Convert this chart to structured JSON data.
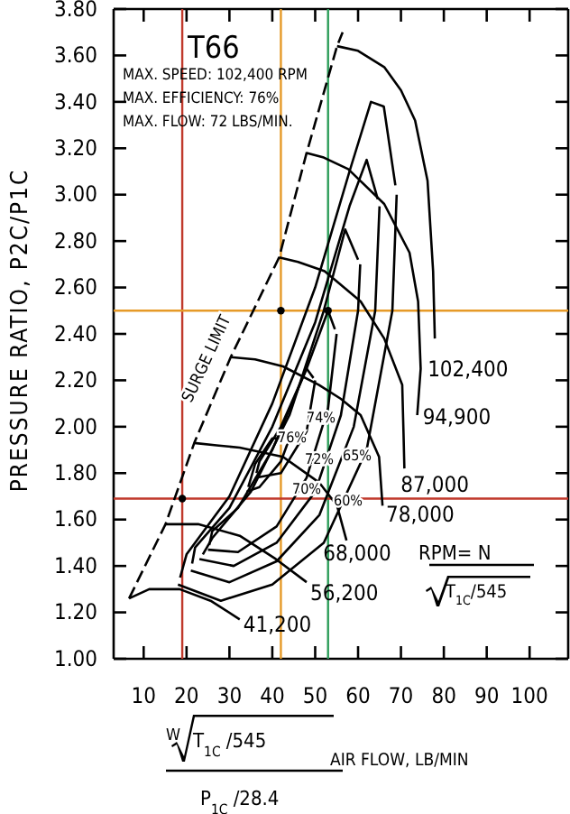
{
  "chart_data": {
    "type": "line",
    "title": "T66",
    "xlabel": "AIR FLOW, LB/MIN",
    "ylabel": "PRESSURE RATIO, P2C/P1C",
    "annotations": [
      "MAX. SPEED: 102,400 RPM",
      "MAX. EFFICIENCY: 76%",
      "MAX. FLOW: 72 LBS/MIN.",
      "RPM= N",
      "T$_{1C}$/545",
      "W",
      "T$_{1C}$ /545",
      "P$_{1C}$ /28.4",
      "SURGE LIMIT",
      "76%",
      "74%",
      "72%",
      "65%",
      "70%",
      "60%"
    ],
    "xlim": [
      3,
      109
    ],
    "ylim": [
      1,
      3.8
    ],
    "xticks": [
      10,
      20,
      30,
      40,
      50,
      60,
      70,
      80,
      90,
      100
    ],
    "yticks": [
      {
        "value": 1,
        "label": "1.00"
      },
      {
        "value": 1.2,
        "label": "1.20"
      },
      {
        "value": 1.4,
        "label": "1.40"
      },
      {
        "value": 1.6,
        "label": "1.60"
      },
      {
        "value": 1.8,
        "label": "1.80"
      },
      {
        "value": 2,
        "label": "2.00"
      },
      {
        "value": 2.2,
        "label": "2.20"
      },
      {
        "value": 2.4,
        "label": "2.40"
      },
      {
        "value": 2.6,
        "label": "2.60"
      },
      {
        "value": 2.8,
        "label": "2.80"
      },
      {
        "value": 3,
        "label": "3.00"
      },
      {
        "value": 3.2,
        "label": "3.20"
      },
      {
        "value": 3.4,
        "label": "3.40"
      },
      {
        "value": 3.6,
        "label": "3.60"
      },
      {
        "value": 3.8,
        "label": "3.80"
      }
    ],
    "grid": false,
    "legend": "right",
    "ref_lines": [
      {
        "axis": "x",
        "value": 19,
        "color": "#c0392b"
      },
      {
        "axis": "x",
        "value": 42,
        "color": "#e69a28"
      },
      {
        "axis": "x",
        "value": 53,
        "color": "#2e9e5b"
      },
      {
        "axis": "y",
        "value": 2.5,
        "color": "#e69a28"
      },
      {
        "axis": "y",
        "value": 1.69,
        "color": "#c0392b"
      }
    ],
    "series": [
      {
        "name": "102,400",
        "color": "#000000",
        "x": [
          55.1,
          60,
          66.1,
          70,
          73.3,
          76.2,
          77.5,
          77.9
        ],
        "values": [
          3.64,
          3.62,
          3.55,
          3.45,
          3.32,
          3.06,
          2.67,
          2.38
        ]
      },
      {
        "name": "94,900",
        "color": "#000000",
        "x": [
          48,
          52,
          57.7,
          66.1,
          72,
          74,
          74.6,
          73.8
        ],
        "values": [
          3.18,
          3.16,
          3.11,
          2.96,
          2.75,
          2.54,
          2.25,
          2.05
        ]
      },
      {
        "name": "87,000",
        "color": "#000000",
        "x": [
          41.6,
          46,
          52.2,
          60.6,
          66.1,
          70.3,
          70.6,
          70.8
        ],
        "values": [
          2.73,
          2.71,
          2.67,
          2.54,
          2.38,
          2.18,
          1.97,
          1.82
        ]
      },
      {
        "name": "78,000",
        "color": "#000000",
        "x": [
          30.3,
          36,
          42.5,
          50.9,
          56,
          60.6,
          64.9,
          65.7
        ],
        "values": [
          2.3,
          2.29,
          2.26,
          2.18,
          2.12,
          2.05,
          1.87,
          1.66
        ]
      },
      {
        "name": "68,000",
        "color": "#000000",
        "x": [
          21.8,
          27,
          32.4,
          42.5,
          50.9,
          55.1,
          57.3
        ],
        "values": [
          1.93,
          1.92,
          1.91,
          1.87,
          1.76,
          1.66,
          1.51
        ]
      },
      {
        "name": "56,200",
        "color": "#000000",
        "x": [
          15.1,
          22.7,
          32.4,
          40.8,
          48
        ],
        "values": [
          1.58,
          1.58,
          1.53,
          1.43,
          1.33
        ]
      },
      {
        "name": "41,200",
        "color": "#000000",
        "x": [
          6.6,
          11.3,
          18.4,
          25.6,
          32.4
        ],
        "values": [
          1.26,
          1.3,
          1.3,
          1.25,
          1.17
        ]
      },
      {
        "color": "#000000",
        "line_style": "dashed",
        "x": [
          6.6,
          15.1,
          21.8,
          30.3,
          41.6,
          48,
          55.1,
          56.4
        ],
        "values": [
          1.26,
          1.58,
          1.93,
          2.3,
          2.73,
          3.18,
          3.64,
          3.7
        ]
      },
      {
        "color": "#000000",
        "x": [
          18,
          28,
          40,
          52,
          62,
          68,
          69
        ],
        "values": [
          1.32,
          1.25,
          1.32,
          1.5,
          1.9,
          2.5,
          3
        ]
      },
      {
        "color": "#000000",
        "x": [
          18.5,
          20,
          30,
          40,
          50,
          58,
          63,
          66,
          68.7
        ],
        "values": [
          1.35,
          1.45,
          1.7,
          2.1,
          2.6,
          3.1,
          3.4,
          3.38,
          3.04
        ]
      },
      {
        "color": "#000000",
        "x": [
          21,
          30,
          41,
          51,
          59,
          64,
          65
        ],
        "values": [
          1.38,
          1.33,
          1.42,
          1.62,
          2,
          2.5,
          2.95
        ]
      },
      {
        "color": "#000000",
        "x": [
          21.3,
          22,
          30,
          40,
          50,
          58,
          62,
          64.6
        ],
        "values": [
          1.41,
          1.48,
          1.65,
          2,
          2.45,
          2.95,
          3.15,
          2.98
        ]
      },
      {
        "color": "#000000",
        "x": [
          23,
          31,
          41,
          50,
          56,
          60,
          60.5
        ],
        "values": [
          1.43,
          1.4,
          1.5,
          1.72,
          2.05,
          2.5,
          2.7
        ]
      },
      {
        "color": "#000000",
        "x": [
          23.8,
          26,
          35,
          44,
          52,
          57,
          60
        ],
        "values": [
          1.45,
          1.52,
          1.72,
          2.05,
          2.5,
          2.85,
          2.72
        ]
      },
      {
        "color": "#000000",
        "x": [
          25,
          32,
          41,
          48,
          53,
          55
        ],
        "values": [
          1.47,
          1.46,
          1.57,
          1.78,
          2.08,
          2.4
        ]
      },
      {
        "color": "#000000",
        "x": [
          25.3,
          26,
          32,
          40,
          48,
          53,
          54.6
        ],
        "values": [
          1.49,
          1.55,
          1.65,
          1.9,
          2.25,
          2.5,
          2.42
        ]
      },
      {
        "color": "#000000",
        "x": [
          36,
          42,
          48,
          50
        ],
        "values": [
          1.78,
          1.8,
          1.98,
          2.2
        ]
      },
      {
        "color": "#000000",
        "x": [
          36.3,
          37,
          42,
          48,
          49.6
        ],
        "values": [
          1.8,
          1.85,
          2,
          2.25,
          2.21
        ]
      },
      {
        "color": "#000000",
        "x": [
          34,
          37,
          42,
          44
        ],
        "values": [
          1.72,
          1.74,
          1.85,
          1.95
        ]
      },
      {
        "color": "#000000",
        "x": [
          34.4,
          36,
          40,
          43.4
        ],
        "values": [
          1.74,
          1.84,
          1.95,
          1.95
        ]
      },
      {
        "type": "scatter",
        "color": "#000000",
        "marker": "circle",
        "x": [
          42,
          53,
          19
        ],
        "values": [
          2.5,
          2.5,
          1.69
        ]
      }
    ]
  }
}
